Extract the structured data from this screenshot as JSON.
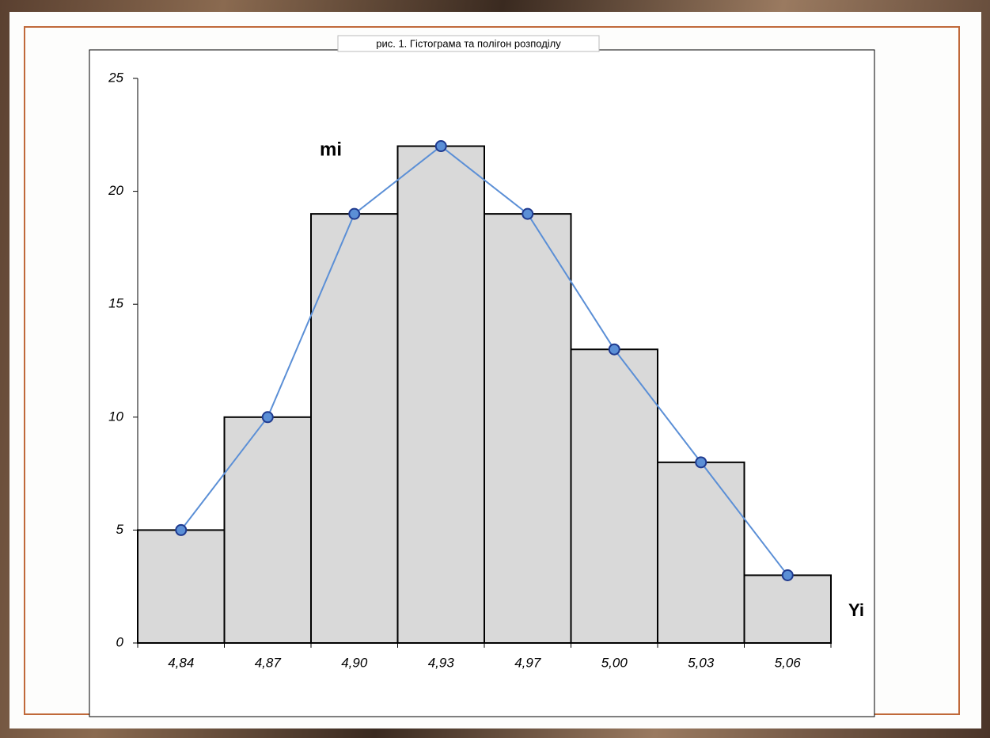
{
  "chart_data": {
    "type": "bar",
    "title": "рис. 1. Гістограма та полігон розподілу",
    "categories": [
      "4,84",
      "4,87",
      "4,90",
      "4,93",
      "4,97",
      "5,00",
      "5,03",
      "5,06"
    ],
    "values": [
      5,
      10,
      19,
      22,
      19,
      13,
      8,
      3
    ],
    "color": "#d9d9d9",
    "polygon": true,
    "polygon_color": "#5b8fd6",
    "ylim": [
      0,
      25
    ],
    "yticks": [
      0,
      5,
      10,
      15,
      20,
      25
    ],
    "grid": false,
    "annotations": [
      "mi",
      "Yi"
    ]
  }
}
